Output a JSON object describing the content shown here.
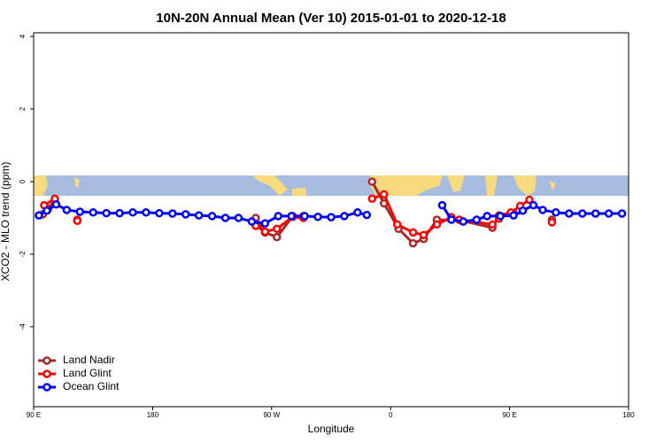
{
  "chart_data": {
    "type": "line",
    "title": "10N-20N Annual Mean (Ver 10)   2015-01-01 to 2020-12-18",
    "x_label": "Longitude",
    "y_label": "XCO2 - MLO trend (ppm)",
    "xlim": [
      90,
      540
    ],
    "ylim": [
      -6.2,
      4.1
    ],
    "xticks": [
      {
        "value": 90,
        "label": "90 E"
      },
      180,
      {
        "value": 270,
        "label": "90 W"
      },
      {
        "value": 360,
        "label": "0"
      },
      {
        "value": 450,
        "label": "90 E"
      },
      {
        "value": 540,
        "label": "180"
      }
    ],
    "yticks": [
      -4,
      -2,
      0,
      2,
      4
    ],
    "legend": "bottom-left",
    "series": [
      {
        "name": "Land Nadir",
        "color": "#a52a2a",
        "x": [
          97,
          101,
          106,
          115,
          123,
          190,
          258,
          265,
          274,
          286,
          294,
          320,
          346,
          355,
          366,
          377,
          385,
          395,
          413,
          437,
          442,
          457,
          470,
          482
        ],
        "values": [
          -0.9,
          -0.75,
          -0.5,
          null,
          -1.05,
          null,
          -1.0,
          -1.4,
          -1.53,
          -0.95,
          -0.95,
          null,
          0.0,
          -0.6,
          -1.3,
          -1.7,
          -1.58,
          -1.05,
          -1.07,
          -1.27,
          -0.93,
          -0.8,
          null,
          -1.05
        ]
      },
      {
        "name": "Land Glint",
        "color": "#ff0000",
        "x": [
          98,
          106,
          115,
          123,
          190,
          258,
          265,
          274,
          286,
          294,
          320,
          346,
          355,
          365,
          377,
          385,
          395,
          406,
          412,
          437,
          442,
          451,
          458,
          465,
          474,
          482
        ],
        "values": [
          -0.65,
          -0.47,
          null,
          -1.08,
          null,
          -1.22,
          -1.38,
          -1.3,
          -0.97,
          -1.0,
          null,
          -0.47,
          -0.35,
          -1.18,
          -1.4,
          -1.47,
          -1.18,
          -0.98,
          -1.05,
          -1.18,
          -1.02,
          -0.85,
          -0.67,
          -0.5,
          null,
          -1.12
        ]
      },
      {
        "name": "Ocean Glint",
        "color": "#0000ff",
        "x": [
          94,
          100,
          107,
          115,
          125,
          135,
          145,
          155,
          165,
          175,
          185,
          195,
          205,
          215,
          225,
          235,
          245,
          255,
          265,
          275,
          285,
          295,
          305,
          315,
          325,
          335,
          342,
          370,
          399,
          406,
          415,
          425,
          433,
          443,
          453,
          460,
          468,
          475,
          485,
          495,
          505,
          515,
          525,
          535
        ],
        "values": [
          -0.93,
          -0.8,
          -0.63,
          -0.78,
          -0.83,
          -0.85,
          -0.87,
          -0.87,
          -0.85,
          -0.85,
          -0.87,
          -0.88,
          -0.9,
          -0.93,
          -0.95,
          -1.0,
          -1.0,
          -1.1,
          -1.15,
          -0.95,
          -0.95,
          -0.95,
          -0.97,
          -0.98,
          -0.95,
          -0.85,
          -0.92,
          null,
          -0.65,
          -1.05,
          -1.1,
          -1.05,
          -0.95,
          -0.95,
          -0.93,
          -0.8,
          -0.65,
          -0.78,
          -0.85,
          -0.88,
          -0.88,
          -0.88,
          -0.88,
          -0.88
        ]
      }
    ]
  }
}
